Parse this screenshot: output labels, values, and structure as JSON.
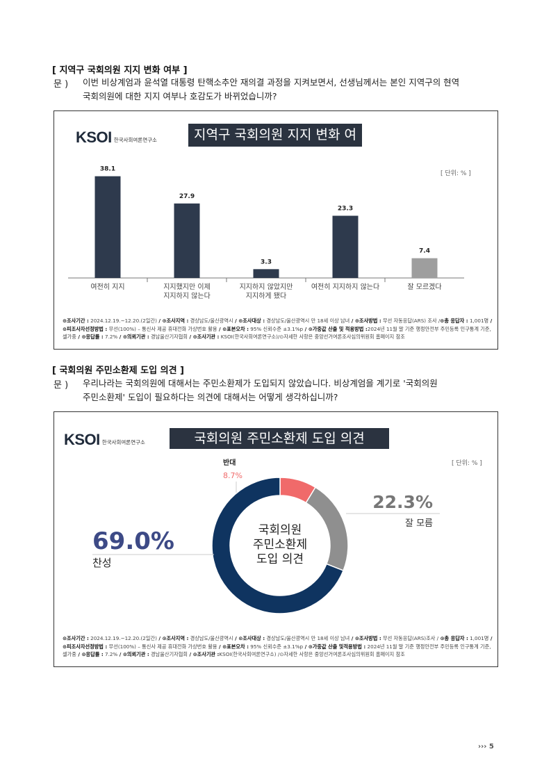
{
  "section1": {
    "title": "[ 지역구 국회의원 지지 변화 여부 ]",
    "q_label": "문 )",
    "q_line1": "이번 비상계엄과 윤석열 대통령 탄핵소추안 재의결 과정을 지켜보면서, 선생님께서는 본인 지역구의 현역",
    "q_line2": "국회의원에 대한 지지 여부나 호감도가 바뀌었습니까?",
    "logo_text": "KSOI",
    "logo_org": "한국사회여론연구소",
    "chart_title": "지역구 국회의원 지지 변화 여부",
    "unit": "[ 단위: % ]",
    "footnote": [
      {
        "k": "⊙조사기간 :",
        "v": " 2024.12.19.~12.20.(2일간)"
      },
      {
        "k": "  / ⊙조사지역 :",
        "v": " 경상남도/울산광역시"
      },
      {
        "k": " / ⊙조사대상 :",
        "v": " 경상남도/울산광역시 만 18세 이상 남녀"
      },
      {
        "k": " / ⊙조사방법 :",
        "v": " 무선 자동응답(ARS) 조사 /"
      },
      {
        "k": "⊙총 응답자 :",
        "v": " 1,001명"
      },
      {
        "k": " / ⊙피조사자선정방법 :",
        "v": " 무선(100%) – 통신사 제공 휴대전화 가상번호 활용"
      },
      {
        "k": " / ⊙표본오차 :",
        "v": " 95% 신뢰수준 ±3.1%p"
      },
      {
        "k": " / ⊙가중값 산출 및 적용방법 :",
        "v": ""
      },
      {
        "k": "",
        "v": "2024년 11월 말 기준 행정안전부 주민등록 인구통계 기준, 셀가중"
      },
      {
        "k": " / ⊙응답률 :",
        "v": " 7.2%"
      },
      {
        "k": " / ⊙의뢰기관 :",
        "v": " 경남울산기자협회"
      },
      {
        "k": " / ⊙조사기관 :",
        "v": " KSOI(한국사회여론연구소)"
      },
      {
        "k": "",
        "v": "/⊙자세한 사항은 중앙선거여론조사심의위원회 홈페이지 참조"
      }
    ]
  },
  "section2": {
    "title": "[ 국회의원 주민소환제 도입 의견 ]",
    "q_label": "문 )",
    "q_line1": "우리나라는 국회의원에 대해서는 주민소환제가 도입되지 않았습니다. 비상계엄을 계기로 '국회의원",
    "q_line2": "주민소환제' 도입이 필요하다는 의견에 대해서는 어떻게 생각하십니까?",
    "logo_text": "KSOI",
    "logo_org": "한국사회여론연구소",
    "chart_title": "국회의원 주민소환제 도입 의견",
    "unit": "[ 단위: % ]",
    "center_line1": "국회의원",
    "center_line2": "주민소환제",
    "center_line3": "도입 의견",
    "footnote": [
      {
        "k": "⊙조사기간 :",
        "v": " 2024.12.19.~12.20.(2일간)"
      },
      {
        "k": "  / ⊙조사지역 :",
        "v": " 경상남도/울산광역시"
      },
      {
        "k": " / ⊙조사대상 :",
        "v": " 경상남도/울산광역시 만 18세 이상 남녀"
      },
      {
        "k": " / ⊙조사방법 :",
        "v": " 무선 자동응답(ARS)"
      },
      {
        "k": "",
        "v": "조사 /"
      },
      {
        "k": " ⊙총 응답자 :",
        "v": " 1,001명"
      },
      {
        "k": " / ⊙피조사자선정방법 :",
        "v": " 무선(100%) – 통신사 제공 휴대전화 가상번호 활용"
      },
      {
        "k": " / ⊙표본오차 :",
        "v": " 95% 신뢰수준 ±3.1%p"
      },
      {
        "k": " / ⊙가중값 산출 및",
        "v": ""
      },
      {
        "k": "적용방법 :",
        "v": " 2024년 11월 말 기준 행정안전부 주민등록 인구통계 기준, 셀가중"
      },
      {
        "k": " / ⊙응답률 :",
        "v": " 7.2%"
      },
      {
        "k": " / ⊙의뢰기관 :",
        "v": " 경남울산기자협회"
      },
      {
        "k": " / ⊙조사기관 :",
        "v": ""
      },
      {
        "k": "",
        "v": "KSOI(한국사회여론연구소)"
      },
      {
        "k": "",
        "v": " /⊙자세한 사항은 중앙선거여론조사심의위원회 홈페이지 참조"
      }
    ]
  },
  "page_number": "5",
  "page_arrows": "›››",
  "chart_data": [
    {
      "type": "bar",
      "title": "지역구 국회의원 지지 변화 여부",
      "categories": [
        [
          "여전히 지지"
        ],
        [
          "지지했지만 이제",
          "지지하지 않는다"
        ],
        [
          "지지하지 않았지만",
          "지지하게 됐다"
        ],
        [
          "여전히 지지하지 않는다"
        ],
        [
          "잘 모르겠다"
        ]
      ],
      "values": [
        38.1,
        27.9,
        3.3,
        23.3,
        7.4
      ],
      "value_labels": [
        "38.1",
        "27.9",
        "3.3",
        "23.3",
        "7.4"
      ],
      "colors": [
        "#2e3a4d",
        "#2e3a4d",
        "#2e3a4d",
        "#2e3a4d",
        "#9e9e9e"
      ],
      "ylim": [
        0,
        45
      ],
      "grid": false
    },
    {
      "type": "pie",
      "title": "국회의원 주민소환제 도입 의견",
      "slices": [
        {
          "name": "반대",
          "value": 8.7,
          "label": "8.7%",
          "color": "#f06a6a"
        },
        {
          "name": "잘 모름",
          "value": 22.3,
          "label": "22.3%",
          "color": "#8f8f8f"
        },
        {
          "name": "찬성",
          "value": 69.0,
          "label": "69.0%",
          "color": "#0f3460"
        }
      ]
    }
  ]
}
